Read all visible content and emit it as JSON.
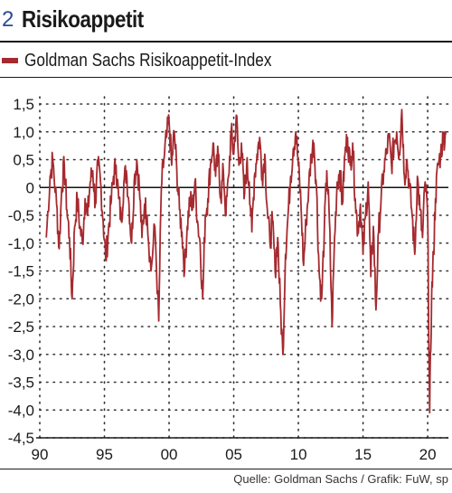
{
  "header": {
    "number": "2",
    "title": "Risikoappetit"
  },
  "legend": {
    "label": "Goldman Sachs Risikoappetit-Index"
  },
  "source": "Quelle: Goldman Sachs / Grafik: FuW, sp",
  "colors": {
    "series": "#a52a2f",
    "grid": "#333333",
    "text": "#1a1a1a",
    "number": "#2b4b9a"
  },
  "chart_data": {
    "type": "line",
    "title": "Risikoappetit",
    "xlabel": "",
    "ylabel": "",
    "xlim": [
      1990,
      2021.6
    ],
    "ylim": [
      -4.5,
      1.5
    ],
    "grid": true,
    "legend_position": "top-left",
    "x_ticks": [
      {
        "value": 1990,
        "label": "90"
      },
      {
        "value": 1995,
        "label": "95"
      },
      {
        "value": 2000,
        "label": "00"
      },
      {
        "value": 2005,
        "label": "05"
      },
      {
        "value": 2010,
        "label": "10"
      },
      {
        "value": 2015,
        "label": "15"
      },
      {
        "value": 2020,
        "label": "20"
      }
    ],
    "y_ticks": [
      {
        "value": 1.5,
        "label": "1,5"
      },
      {
        "value": 1.0,
        "label": "1,0"
      },
      {
        "value": 0.5,
        "label": "0,5"
      },
      {
        "value": 0,
        "label": "0"
      },
      {
        "value": -0.5,
        "label": "-0,5"
      },
      {
        "value": -1.0,
        "label": "-1,0"
      },
      {
        "value": -1.5,
        "label": "-1,5"
      },
      {
        "value": -2.0,
        "label": "-2,0"
      },
      {
        "value": -2.5,
        "label": "-2,5"
      },
      {
        "value": -3.0,
        "label": "-3,0"
      },
      {
        "value": -3.5,
        "label": "-3,5"
      },
      {
        "value": -4.0,
        "label": "-4,0"
      },
      {
        "value": -4.5,
        "label": "-4,5"
      }
    ],
    "series": [
      {
        "name": "Goldman Sachs Risikoappetit-Index",
        "points": [
          [
            1990.5,
            -0.9
          ],
          [
            1990.8,
            0.2
          ],
          [
            1991.0,
            0.5
          ],
          [
            1991.3,
            -0.3
          ],
          [
            1991.5,
            -1.1
          ],
          [
            1991.7,
            0.0
          ],
          [
            1991.9,
            0.4
          ],
          [
            1992.1,
            -0.4
          ],
          [
            1992.3,
            -0.9
          ],
          [
            1992.5,
            -2.0
          ],
          [
            1992.7,
            -0.7
          ],
          [
            1992.9,
            -0.2
          ],
          [
            1993.1,
            -0.7
          ],
          [
            1993.3,
            -1.0
          ],
          [
            1993.5,
            -0.2
          ],
          [
            1993.7,
            -0.5
          ],
          [
            1993.9,
            0.1
          ],
          [
            1994.1,
            0.3
          ],
          [
            1994.3,
            -0.3
          ],
          [
            1994.5,
            0.4
          ],
          [
            1994.7,
            0.1
          ],
          [
            1994.9,
            -0.6
          ],
          [
            1995.1,
            -1.3
          ],
          [
            1995.3,
            -0.8
          ],
          [
            1995.5,
            -0.3
          ],
          [
            1995.7,
            0.2
          ],
          [
            1995.9,
            0.4
          ],
          [
            1996.1,
            -0.2
          ],
          [
            1996.3,
            -0.6
          ],
          [
            1996.5,
            0.1
          ],
          [
            1996.7,
            0.3
          ],
          [
            1996.9,
            -0.3
          ],
          [
            1997.1,
            -1.0
          ],
          [
            1997.3,
            0.1
          ],
          [
            1997.5,
            0.5
          ],
          [
            1997.7,
            0.0
          ],
          [
            1997.9,
            -0.9
          ],
          [
            1998.1,
            -0.3
          ],
          [
            1998.3,
            -0.5
          ],
          [
            1998.6,
            -1.5
          ],
          [
            1998.9,
            -0.7
          ],
          [
            1999.2,
            -2.4
          ],
          [
            1999.4,
            0.0
          ],
          [
            1999.6,
            0.5
          ],
          [
            1999.8,
            0.9
          ],
          [
            2000.0,
            1.2
          ],
          [
            2000.2,
            0.4
          ],
          [
            2000.4,
            1.0
          ],
          [
            2000.6,
            0.3
          ],
          [
            2000.8,
            -0.4
          ],
          [
            2001.0,
            -0.8
          ],
          [
            2001.2,
            -1.5
          ],
          [
            2001.4,
            -0.7
          ],
          [
            2001.6,
            -0.2
          ],
          [
            2001.8,
            -0.4
          ],
          [
            2002.0,
            0.1
          ],
          [
            2002.2,
            -0.6
          ],
          [
            2002.4,
            -1.0
          ],
          [
            2002.6,
            -2.0
          ],
          [
            2002.8,
            -0.5
          ],
          [
            2003.0,
            -0.2
          ],
          [
            2003.2,
            0.4
          ],
          [
            2003.4,
            0.8
          ],
          [
            2003.6,
            0.2
          ],
          [
            2003.8,
            0.6
          ],
          [
            2004.0,
            -0.2
          ],
          [
            2004.2,
            0.3
          ],
          [
            2004.4,
            -0.5
          ],
          [
            2004.6,
            0.2
          ],
          [
            2004.8,
            1.0
          ],
          [
            2005.0,
            0.6
          ],
          [
            2005.2,
            1.3
          ],
          [
            2005.4,
            0.4
          ],
          [
            2005.6,
            0.8
          ],
          [
            2005.8,
            -0.2
          ],
          [
            2006.0,
            0.4
          ],
          [
            2006.2,
            0.1
          ],
          [
            2006.4,
            -0.8
          ],
          [
            2006.6,
            0.2
          ],
          [
            2006.8,
            0.6
          ],
          [
            2007.0,
            0.9
          ],
          [
            2007.2,
            0.2
          ],
          [
            2007.4,
            0.6
          ],
          [
            2007.6,
            -0.4
          ],
          [
            2007.8,
            -1.0
          ],
          [
            2008.0,
            -0.6
          ],
          [
            2008.2,
            -1.5
          ],
          [
            2008.4,
            -0.9
          ],
          [
            2008.6,
            -2.1
          ],
          [
            2008.8,
            -3.0
          ],
          [
            2009.0,
            -1.2
          ],
          [
            2009.2,
            -0.5
          ],
          [
            2009.4,
            0.2
          ],
          [
            2009.6,
            0.7
          ],
          [
            2009.8,
            1.0
          ],
          [
            2010.0,
            0.4
          ],
          [
            2010.2,
            -0.3
          ],
          [
            2010.4,
            -1.4
          ],
          [
            2010.6,
            -0.6
          ],
          [
            2010.8,
            0.0
          ],
          [
            2011.0,
            0.6
          ],
          [
            2011.2,
            0.8
          ],
          [
            2011.4,
            0.0
          ],
          [
            2011.6,
            -1.5
          ],
          [
            2011.8,
            -2.0
          ],
          [
            2012.0,
            -0.8
          ],
          [
            2012.2,
            0.3
          ],
          [
            2012.4,
            -0.6
          ],
          [
            2012.6,
            -2.5
          ],
          [
            2012.8,
            -0.9
          ],
          [
            2013.0,
            0.1
          ],
          [
            2013.2,
            0.3
          ],
          [
            2013.4,
            -0.3
          ],
          [
            2013.6,
            0.6
          ],
          [
            2013.8,
            0.9
          ],
          [
            2014.0,
            0.4
          ],
          [
            2014.2,
            0.8
          ],
          [
            2014.4,
            -0.2
          ],
          [
            2014.6,
            -0.8
          ],
          [
            2014.8,
            -0.3
          ],
          [
            2015.0,
            -1.2
          ],
          [
            2015.2,
            -0.5
          ],
          [
            2015.4,
            0.1
          ],
          [
            2015.6,
            -1.6
          ],
          [
            2015.8,
            -0.7
          ],
          [
            2016.0,
            -2.2
          ],
          [
            2016.2,
            -0.8
          ],
          [
            2016.4,
            -0.2
          ],
          [
            2016.6,
            0.3
          ],
          [
            2016.8,
            0.6
          ],
          [
            2017.0,
            0.9
          ],
          [
            2017.2,
            0.4
          ],
          [
            2017.4,
            0.8
          ],
          [
            2017.6,
            1.0
          ],
          [
            2017.8,
            0.6
          ],
          [
            2018.0,
            1.4
          ],
          [
            2018.2,
            0.2
          ],
          [
            2018.4,
            0.5
          ],
          [
            2018.6,
            0.0
          ],
          [
            2018.8,
            -0.5
          ],
          [
            2019.0,
            -1.2
          ],
          [
            2019.2,
            0.2
          ],
          [
            2019.4,
            -0.4
          ],
          [
            2019.6,
            -0.9
          ],
          [
            2019.8,
            0.1
          ],
          [
            2020.0,
            -0.5
          ],
          [
            2020.15,
            -4.05
          ],
          [
            2020.3,
            -2.0
          ],
          [
            2020.45,
            -1.2
          ],
          [
            2020.6,
            -0.2
          ],
          [
            2020.8,
            0.4
          ],
          [
            2021.0,
            0.6
          ],
          [
            2021.2,
            0.9
          ],
          [
            2021.4,
            0.95
          ]
        ]
      }
    ]
  }
}
